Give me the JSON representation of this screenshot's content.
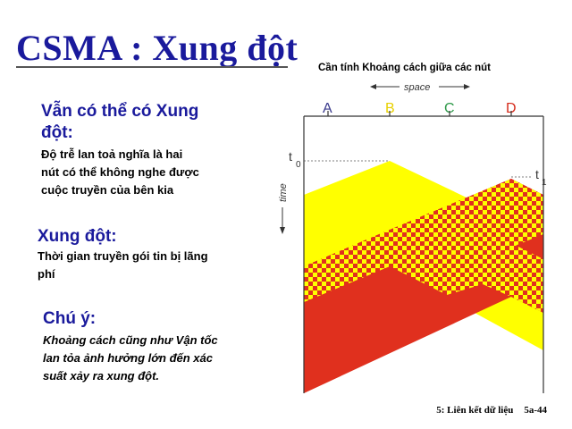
{
  "slide": {
    "title": "CSMA : Xung đột",
    "section1": {
      "heading_line1": "Vẫn có thể có Xung",
      "heading_line2": "đột:",
      "body_line1": "Độ trễ lan toả nghĩa là hai",
      "body_line2": "nút có thể không nghe được",
      "body_line3": "cuộc truyền của bên kia"
    },
    "section2": {
      "heading": "Xung đột:",
      "body_line1": "Thời gian truyền gói tin bị lãng",
      "body_line2": "phí"
    },
    "section3": {
      "heading": "Chú ý:",
      "body_line1": "Khoảng cách cũng như Vận tốc",
      "body_line2": "lan tỏa ảnh hưởng lớn đến xác",
      "body_line3": "suất xảy ra xung đột."
    },
    "footer": {
      "chapter": "5: Liên kết dữ liệu",
      "page": "5a-44"
    }
  },
  "diagram": {
    "caption": "Cần tính Khoảng cách giữa các nút",
    "space_label": "space",
    "time_label": "time",
    "t0_main": "t",
    "t0_sub": "0",
    "t1_main": "t",
    "t1_sub": "1",
    "nodes": [
      {
        "label": "A",
        "color": "#3a3a8c"
      },
      {
        "label": "B",
        "color": "#e8d000"
      },
      {
        "label": "C",
        "color": "#2f9a4a"
      },
      {
        "label": "D",
        "color": "#d52a1a"
      }
    ],
    "colors": {
      "yellow": "#ffff00",
      "red": "#e0301e",
      "frame": "#333333"
    }
  }
}
